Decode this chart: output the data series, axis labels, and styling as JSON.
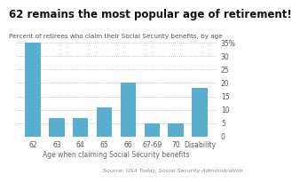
{
  "categories": [
    "62",
    "63",
    "64",
    "65",
    "66",
    "67-69",
    "70",
    "Disability"
  ],
  "values": [
    35,
    7,
    7,
    11,
    20,
    5,
    5,
    18
  ],
  "bar_color": "#5aafd0",
  "title": "62 remains the most popular age of retirement!",
  "subtitle": "Percent of retirees who claim their Social Security benefits, by age",
  "xlabel": "Age when claiming Social Security benefits",
  "source": "Source: USA Today, Social Security Administration",
  "ylim": [
    0,
    35
  ],
  "yticks": [
    0,
    5,
    10,
    15,
    20,
    25,
    30,
    35
  ],
  "ytick_labels": [
    "0",
    "5",
    "10",
    "15",
    "20",
    "25",
    "30",
    "35%"
  ],
  "title_fontsize": 8.5,
  "subtitle_fontsize": 5.2,
  "xlabel_fontsize": 5.5,
  "source_fontsize": 4.5,
  "tick_fontsize": 5.5,
  "background_color": "#ffffff"
}
